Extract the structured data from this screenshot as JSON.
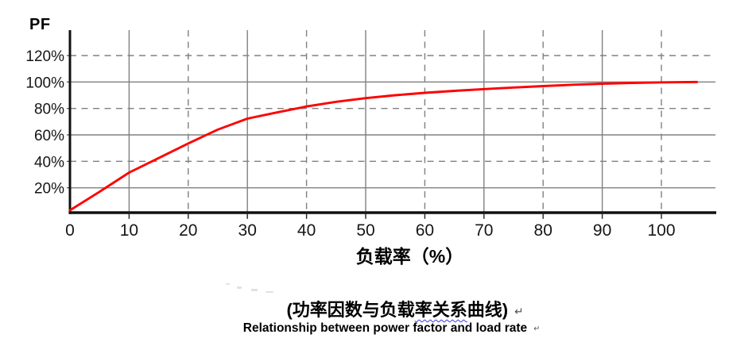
{
  "chart_data": {
    "type": "line",
    "title": "",
    "xlabel": "负载率（%）",
    "ylabel": "PF",
    "x_ticks": [
      0,
      10,
      20,
      30,
      40,
      50,
      60,
      70,
      80,
      90,
      100
    ],
    "y_ticks": [
      20,
      40,
      60,
      80,
      100,
      120
    ],
    "y_tick_labels": [
      "20%",
      "40%",
      "60%",
      "80%",
      "100%",
      "120%"
    ],
    "xlim": [
      0,
      109
    ],
    "ylim": [
      0,
      139
    ],
    "grid": "horizontal-and-vertical, alternating solid and dashed",
    "legend": "none",
    "colors": {
      "curve": "#fe0000",
      "grid": "#808080",
      "axis": "#111111",
      "tick_text": "#161616"
    },
    "series": [
      {
        "name": "power-factor-vs-load-rate",
        "color": "#fe0000",
        "points": [
          [
            0,
            3
          ],
          [
            5,
            17
          ],
          [
            10,
            31.5
          ],
          [
            15,
            42.5
          ],
          [
            20,
            53.5
          ],
          [
            25,
            64
          ],
          [
            30,
            72.3
          ],
          [
            35,
            77
          ],
          [
            40,
            81.5
          ],
          [
            45,
            85
          ],
          [
            50,
            87.8
          ],
          [
            55,
            90
          ],
          [
            60,
            91.8
          ],
          [
            65,
            93.3
          ],
          [
            70,
            94.6
          ],
          [
            75,
            95.8
          ],
          [
            80,
            96.9
          ],
          [
            85,
            97.9
          ],
          [
            90,
            98.7
          ],
          [
            95,
            99.3
          ],
          [
            100,
            99.7
          ],
          [
            106,
            100
          ]
        ]
      }
    ]
  },
  "captions": {
    "chinese": {
      "pre": "(功率因数与负载",
      "squiggle": "率关系",
      "post": "曲线)",
      "paragraph_mark": "↵"
    },
    "english": {
      "text": "Relationship between power factor and load rate",
      "paragraph_mark": "↵"
    }
  }
}
